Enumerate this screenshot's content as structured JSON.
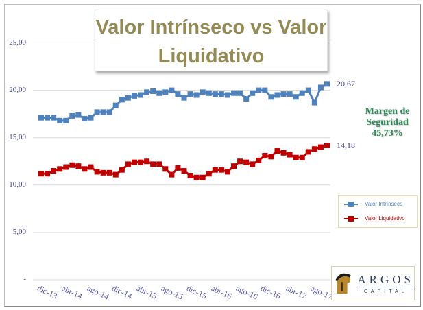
{
  "chart_data": {
    "type": "line",
    "title": "Valor Intrínseco vs Valor Liquidativo",
    "title_lines": [
      "Valor Intrínseco vs Valor",
      "Liquidativo"
    ],
    "x": [
      "dic-13",
      "ene-14",
      "feb-14",
      "mar-14",
      "abr-14",
      "may-14",
      "jun-14",
      "jul-14",
      "ago-14",
      "sep-14",
      "oct-14",
      "nov-14",
      "dic-14",
      "ene-15",
      "feb-15",
      "mar-15",
      "abr-15",
      "may-15",
      "jun-15",
      "jul-15",
      "ago-15",
      "sep-15",
      "oct-15",
      "nov-15",
      "dic-15",
      "ene-16",
      "feb-16",
      "mar-16",
      "abr-16",
      "may-16",
      "jun-16",
      "jul-16",
      "ago-16",
      "sep-16",
      "oct-16",
      "nov-16",
      "dic-16",
      "ene-17",
      "feb-17",
      "mar-17",
      "abr-17",
      "may-17",
      "jun-17",
      "jul-17",
      "ago-17",
      "sep-17",
      "oct-17"
    ],
    "x_tick_labels": [
      "dic-13",
      "abr-14",
      "ago-14",
      "dic-14",
      "abr-15",
      "ago-15",
      "dic-15",
      "abr-16",
      "ago-16",
      "dic-16",
      "abr-17",
      "ago-17"
    ],
    "y_tick_labels": [
      "-",
      "5,00",
      "10,00",
      "15,00",
      "20,00",
      "25,00"
    ],
    "ylim": [
      0,
      25
    ],
    "grid": true,
    "legend_position": "right",
    "series": [
      {
        "name": "Valor Intrínseco",
        "color": "#4f81bd",
        "end_label": "20,67",
        "values": [
          17.1,
          17.1,
          17.1,
          16.8,
          16.8,
          17.3,
          17.4,
          17.0,
          17.1,
          17.7,
          17.7,
          17.7,
          18.4,
          19.0,
          19.2,
          19.4,
          19.5,
          19.8,
          19.9,
          19.7,
          19.8,
          20.0,
          19.6,
          19.2,
          19.6,
          19.5,
          19.8,
          19.7,
          19.6,
          19.6,
          19.5,
          19.7,
          19.7,
          19.1,
          19.7,
          20.0,
          20.0,
          19.3,
          19.5,
          19.6,
          19.6,
          19.3,
          19.7,
          20.0,
          18.7,
          20.3,
          20.67
        ]
      },
      {
        "name": "Valor Liquidativo",
        "color": "#c00000",
        "end_label": "14,18",
        "values": [
          11.2,
          11.2,
          11.5,
          11.7,
          11.9,
          12.1,
          12.0,
          11.7,
          11.9,
          11.4,
          11.3,
          11.3,
          11.1,
          11.6,
          12.2,
          12.4,
          12.4,
          12.5,
          12.2,
          12.2,
          11.7,
          11.1,
          11.8,
          11.5,
          11.0,
          10.8,
          10.8,
          11.2,
          11.6,
          11.6,
          11.4,
          12.0,
          12.5,
          12.4,
          12.2,
          12.6,
          13.1,
          13.0,
          13.6,
          13.4,
          13.2,
          12.9,
          12.9,
          13.5,
          13.8,
          14.0,
          14.18
        ]
      }
    ],
    "annotation": [
      "Margen de",
      "Seguridad",
      "45,73%"
    ]
  },
  "logo": {
    "name": "ARGOS",
    "sub": "CAPITAL"
  }
}
